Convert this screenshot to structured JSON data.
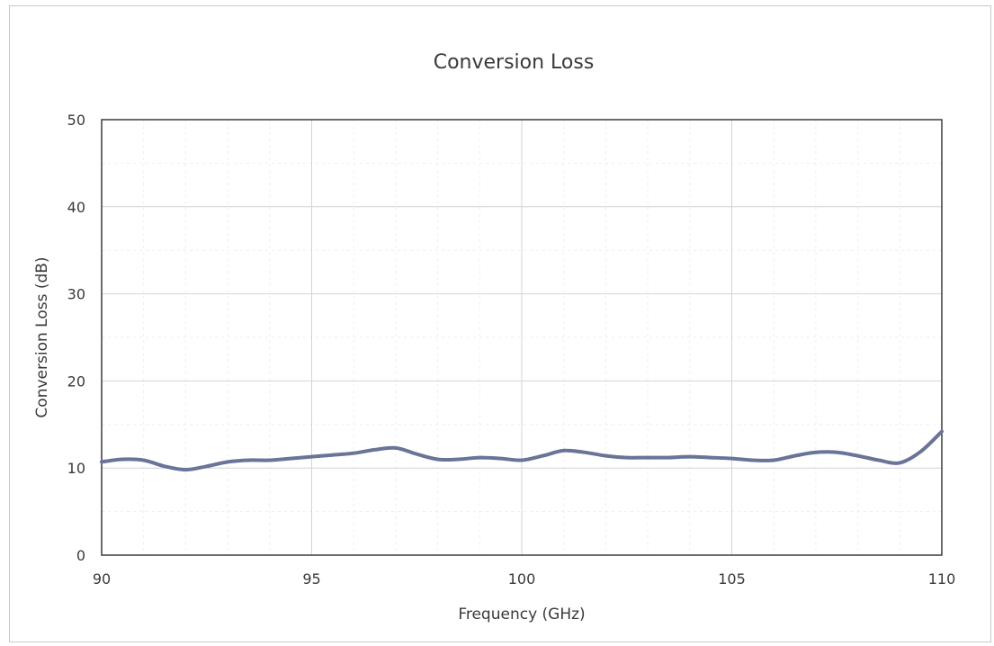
{
  "chart_data": {
    "type": "line",
    "title": "Conversion Loss",
    "xlabel": "Frequency (GHz)",
    "ylabel": "Conversion Loss (dB)",
    "xlim": [
      90,
      110
    ],
    "ylim": [
      0,
      50
    ],
    "x_ticks": [
      90,
      95,
      100,
      105,
      110
    ],
    "y_ticks": [
      0,
      10,
      20,
      30,
      40,
      50
    ],
    "grid": true,
    "legend": "none",
    "line_color": "#6a7398",
    "series": [
      {
        "x": [
          90,
          90.5,
          91,
          91.5,
          92,
          92.5,
          93,
          93.5,
          94,
          94.5,
          95,
          95.5,
          96,
          96.5,
          97,
          97.5,
          98,
          98.5,
          99,
          99.5,
          100,
          100.5,
          101,
          101.5,
          102,
          102.5,
          103,
          103.5,
          104,
          104.5,
          105,
          105.5,
          106,
          106.5,
          107,
          107.5,
          108,
          108.5,
          109,
          109.5,
          110
        ],
        "values": [
          10.7,
          11.0,
          10.9,
          10.2,
          9.8,
          10.2,
          10.7,
          10.9,
          10.9,
          11.1,
          11.3,
          11.5,
          11.7,
          12.1,
          12.3,
          11.6,
          11.0,
          11.0,
          11.2,
          11.1,
          10.9,
          11.4,
          12.0,
          11.8,
          11.4,
          11.2,
          11.2,
          11.2,
          11.3,
          11.2,
          11.1,
          10.9,
          10.9,
          11.4,
          11.8,
          11.8,
          11.4,
          10.9,
          10.6,
          11.9,
          14.2
        ]
      }
    ]
  }
}
